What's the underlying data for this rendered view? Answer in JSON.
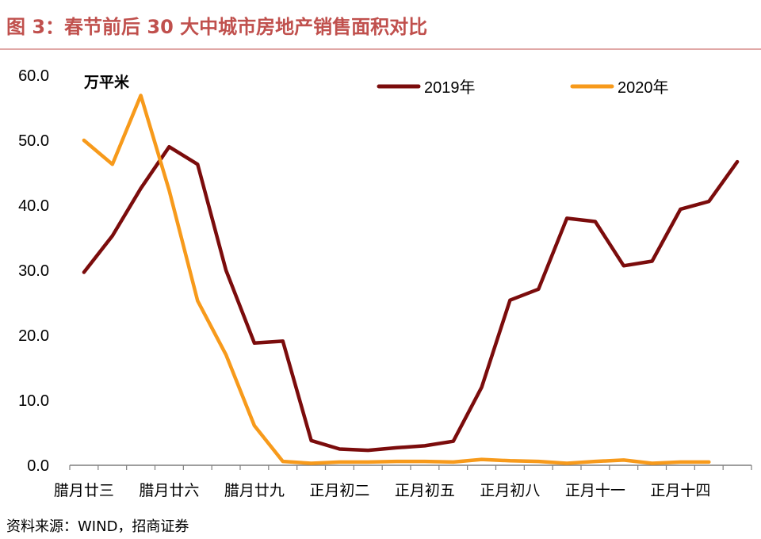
{
  "title": "图 3：春节前后 30 大中城市房地产销售面积对比",
  "source": "资料来源：WIND，招商证券",
  "chart_data": {
    "type": "line",
    "unit_label": "万平米",
    "ylim": [
      0,
      60
    ],
    "yticks": [
      "0.0",
      "10.0",
      "20.0",
      "30.0",
      "40.0",
      "50.0",
      "60.0"
    ],
    "ytick_values": [
      0,
      10,
      20,
      30,
      40,
      50,
      60
    ],
    "x_tick_labels": [
      "腊月廿三",
      "腊月廿六",
      "腊月廿九",
      "正月初二",
      "正月初五",
      "正月初八",
      "正月十一",
      "正月十四"
    ],
    "x_tick_index": [
      0,
      3,
      6,
      9,
      12,
      15,
      18,
      21
    ],
    "grid": false,
    "legend_position": "top",
    "series": [
      {
        "name": "2019年",
        "color": "#7b0c0c",
        "values": [
          29.7,
          35.3,
          42.6,
          49.0,
          46.3,
          30.0,
          18.8,
          19.1,
          3.8,
          2.5,
          2.3,
          2.7,
          3.0,
          3.7,
          12.0,
          25.4,
          27.1,
          38.0,
          37.5,
          30.7,
          31.4,
          39.4,
          40.6,
          46.7
        ]
      },
      {
        "name": "2020年",
        "color": "#f79a1b",
        "values": [
          50.0,
          46.3,
          56.9,
          42.3,
          25.3,
          17.0,
          6.1,
          0.6,
          0.3,
          0.5,
          0.5,
          0.6,
          0.6,
          0.5,
          0.9,
          0.7,
          0.6,
          0.3,
          0.6,
          0.8,
          0.3,
          0.5,
          0.5
        ]
      }
    ]
  }
}
